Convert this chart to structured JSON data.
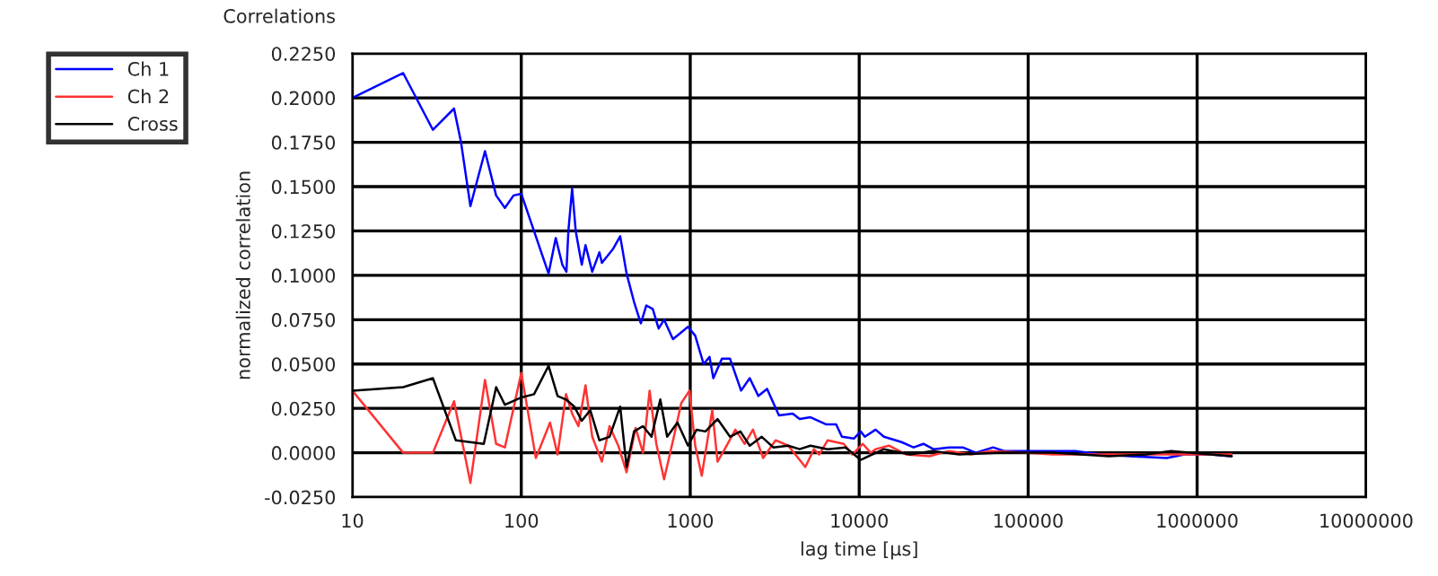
{
  "chart_data": {
    "type": "line",
    "title": "Correlations",
    "xlabel": "lag time [µs]",
    "ylabel": "normalized correlation",
    "log": "x",
    "grid": true,
    "legend": "top left",
    "xlim": [
      10,
      10000000
    ],
    "xticks": [
      10,
      100,
      1000,
      10000,
      100000,
      1000000,
      10000000
    ],
    "ylim": [
      -0.025,
      0.225
    ],
    "yticks": [
      {
        "value": -0.025,
        "label": "-0.0250"
      },
      {
        "value": 0,
        "label": "0.0000"
      },
      {
        "value": 0.025,
        "label": "0.0250"
      },
      {
        "value": 0.05,
        "label": "0.0500"
      },
      {
        "value": 0.075,
        "label": "0.0750"
      },
      {
        "value": 0.1,
        "label": "0.1000"
      },
      {
        "value": 0.125,
        "label": "0.1250"
      },
      {
        "value": 0.15,
        "label": "0.1500"
      },
      {
        "value": 0.175,
        "label": "0.1750"
      },
      {
        "value": 0.2,
        "label": "0.2000"
      },
      {
        "value": 0.225,
        "label": "0.2250"
      }
    ],
    "series": [
      {
        "name": "Ch 1",
        "color": "#0000ff",
        "x": [
          10,
          20,
          30,
          40,
          44,
          50,
          61,
          71,
          80,
          90,
          100,
          145,
          160,
          175,
          185,
          190,
          200,
          210,
          228,
          240,
          263,
          290,
          300,
          350,
          385,
          420,
          465,
          510,
          550,
          600,
          650,
          700,
          790,
          970,
          1070,
          1200,
          1300,
          1370,
          1540,
          1720,
          2000,
          2250,
          2530,
          2850,
          3350,
          4040,
          4440,
          5150,
          6350,
          7300,
          7900,
          9300,
          10200,
          10800,
          12500,
          14000,
          17800,
          21000,
          24000,
          27500,
          34000,
          41000,
          49000,
          62000,
          72000,
          95000,
          140000,
          190000,
          270000,
          400000,
          660000,
          840000,
          1200000,
          1600000
        ],
        "values": [
          0.2,
          0.214,
          0.182,
          0.194,
          0.175,
          0.139,
          0.17,
          0.145,
          0.138,
          0.145,
          0.146,
          0.101,
          0.121,
          0.106,
          0.102,
          0.125,
          0.149,
          0.125,
          0.106,
          0.117,
          0.102,
          0.113,
          0.107,
          0.115,
          0.122,
          0.101,
          0.085,
          0.073,
          0.083,
          0.081,
          0.07,
          0.075,
          0.064,
          0.071,
          0.066,
          0.05,
          0.054,
          0.042,
          0.053,
          0.053,
          0.035,
          0.042,
          0.032,
          0.036,
          0.021,
          0.022,
          0.019,
          0.02,
          0.016,
          0.016,
          0.009,
          0.008,
          0.012,
          0.009,
          0.013,
          0.009,
          0.006,
          0.003,
          0.005,
          0.002,
          0.003,
          0.003,
          0.0,
          0.003,
          0.001,
          0.001,
          0.001,
          0.001,
          -0.001,
          -0.002,
          -0.003,
          -0.001,
          -0.001,
          -0.002
        ]
      },
      {
        "name": "Ch 2",
        "color": "#ff3333",
        "x": [
          10,
          20,
          30,
          40,
          50,
          61,
          71,
          80,
          100,
          122,
          148,
          164,
          184,
          200,
          218,
          240,
          263,
          300,
          333,
          375,
          420,
          475,
          525,
          575,
          630,
          700,
          800,
          885,
          990,
          1070,
          1170,
          1350,
          1450,
          1600,
          1850,
          2100,
          2350,
          2700,
          3200,
          3800,
          4800,
          5400,
          5800,
          6500,
          8100,
          9100,
          10500,
          11700,
          12500,
          15000,
          19000,
          26000,
          34000,
          46000,
          60000,
          95000,
          140000,
          260000,
          400000,
          800000,
          1600000
        ],
        "values": [
          0.035,
          0.0,
          0.0,
          0.029,
          -0.017,
          0.041,
          0.005,
          0.003,
          0.045,
          -0.003,
          0.017,
          -0.001,
          0.033,
          0.022,
          0.015,
          0.038,
          0.009,
          -0.005,
          0.015,
          0.004,
          -0.011,
          0.014,
          0.0,
          0.035,
          0.005,
          -0.015,
          0.009,
          0.028,
          0.035,
          0.004,
          -0.013,
          0.024,
          -0.005,
          0.002,
          0.013,
          0.005,
          0.013,
          -0.003,
          0.007,
          0.004,
          -0.008,
          0.002,
          -0.001,
          0.007,
          0.005,
          -0.001,
          0.005,
          0.0,
          0.002,
          0.004,
          -0.001,
          -0.002,
          0.001,
          -0.001,
          0.001,
          0.0,
          -0.001,
          -0.001,
          -0.001,
          -0.001,
          -0.001
        ]
      },
      {
        "name": "Cross",
        "color": "#000000",
        "x": [
          10,
          20,
          30,
          41,
          60,
          71,
          80,
          99,
          119,
          145,
          164,
          184,
          206,
          228,
          256,
          290,
          333,
          385,
          420,
          465,
          525,
          590,
          665,
          730,
          840,
          970,
          1090,
          1230,
          1450,
          1720,
          1980,
          2250,
          2650,
          3100,
          3800,
          4440,
          5150,
          6500,
          8300,
          10200,
          14000,
          20000,
          27000,
          39000,
          70000,
          140000,
          300000,
          500000,
          700000,
          1200000,
          1600000
        ],
        "values": [
          0.035,
          0.037,
          0.042,
          0.007,
          0.005,
          0.037,
          0.027,
          0.031,
          0.033,
          0.049,
          0.032,
          0.03,
          0.026,
          0.018,
          0.024,
          0.007,
          0.009,
          0.026,
          -0.008,
          0.012,
          0.015,
          0.009,
          0.03,
          0.009,
          0.017,
          0.004,
          0.013,
          0.012,
          0.019,
          0.009,
          0.012,
          0.004,
          0.009,
          0.003,
          0.004,
          0.002,
          0.004,
          0.002,
          0.003,
          -0.004,
          0.002,
          -0.001,
          0.001,
          -0.001,
          0.0,
          0.0,
          -0.002,
          -0.001,
          0.001,
          -0.001,
          -0.002
        ]
      }
    ]
  }
}
